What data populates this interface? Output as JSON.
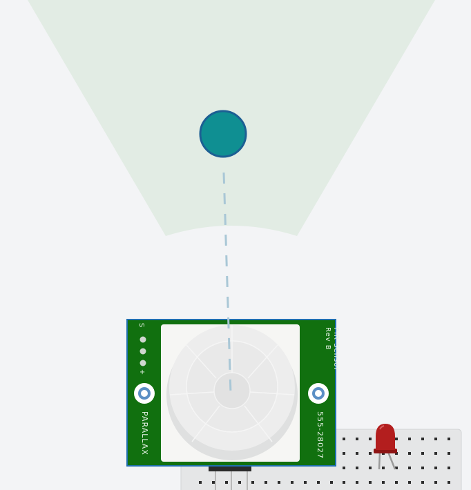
{
  "sensor": {
    "title": "PIR Sensor",
    "revision": "Rev B",
    "part_number": "555-28027",
    "brand": "PARALLAX",
    "pins": [
      "S",
      "",
      "",
      "",
      "+"
    ]
  },
  "detection_zone": {
    "color": "#e2ece4",
    "target_color": "#0f8f92",
    "target_outline": "#1c5f93",
    "dash_color": "#a9c7d6"
  },
  "led": {
    "color": "#b31e1e"
  },
  "board": {
    "color": "#11700f",
    "border": "#1f6fae"
  }
}
